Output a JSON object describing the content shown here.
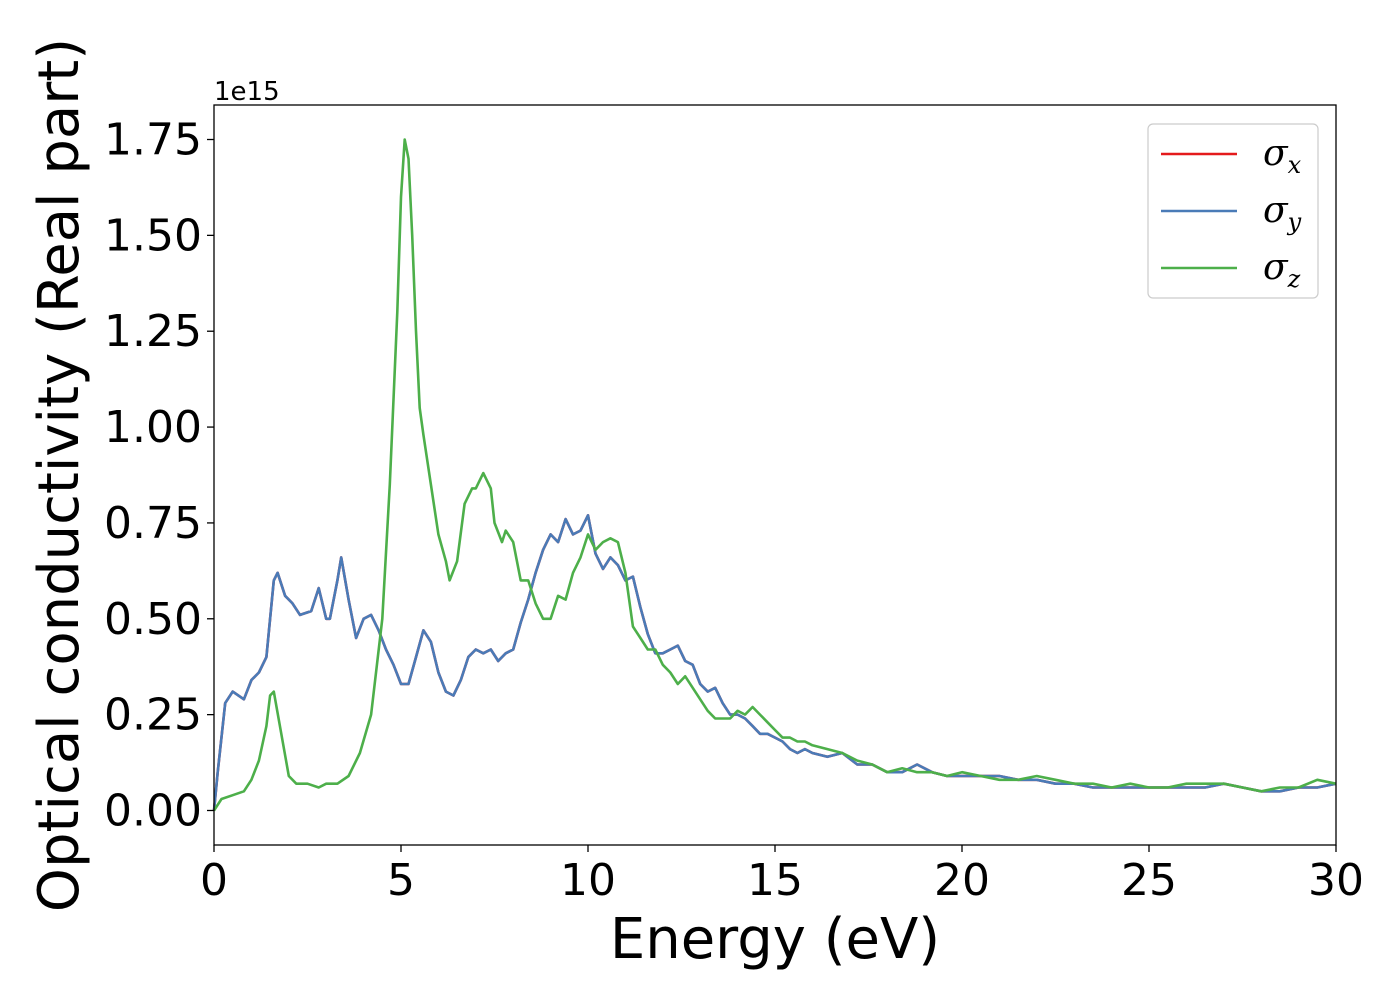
{
  "chart_data": {
    "type": "line",
    "xlabel": "Energy (eV)",
    "ylabel": "Optical conductivity (Real part)",
    "y_offset_label": "1e15",
    "xlim": [
      0,
      30
    ],
    "ylim": [
      -0.09,
      1.84
    ],
    "xticks": [
      0,
      5,
      10,
      15,
      20,
      25,
      30
    ],
    "xtick_labels": [
      "0",
      "5",
      "10",
      "15",
      "20",
      "25",
      "30"
    ],
    "yticks": [
      0.0,
      0.25,
      0.5,
      0.75,
      1.0,
      1.25,
      1.5,
      1.75
    ],
    "ytick_labels": [
      "0.00",
      "0.25",
      "0.50",
      "0.75",
      "1.00",
      "1.25",
      "1.50",
      "1.75"
    ],
    "grid": false,
    "legend_position": "top-right",
    "series": [
      {
        "name": "σx",
        "symbol": "σ",
        "subscript": "x",
        "color": "#e41a1c",
        "x": [
          0,
          0.1,
          0.3,
          0.5,
          0.8,
          1.0,
          1.2,
          1.4,
          1.6,
          1.7,
          1.9,
          2.1,
          2.3,
          2.6,
          2.8,
          3.0,
          3.1,
          3.3,
          3.4,
          3.6,
          3.8,
          4.0,
          4.2,
          4.4,
          4.6,
          4.8,
          5.0,
          5.2,
          5.4,
          5.6,
          5.8,
          6.0,
          6.2,
          6.4,
          6.6,
          6.8,
          7.0,
          7.2,
          7.4,
          7.6,
          7.8,
          8.0,
          8.2,
          8.4,
          8.6,
          8.8,
          9.0,
          9.2,
          9.4,
          9.6,
          9.8,
          10.0,
          10.2,
          10.4,
          10.6,
          10.8,
          11.0,
          11.2,
          11.4,
          11.6,
          11.8,
          12.0,
          12.2,
          12.4,
          12.6,
          12.8,
          13.0,
          13.2,
          13.4,
          13.6,
          13.8,
          14.0,
          14.2,
          14.4,
          14.6,
          14.8,
          15.0,
          15.2,
          15.4,
          15.6,
          15.8,
          16.0,
          16.4,
          16.8,
          17.2,
          17.6,
          18.0,
          18.4,
          18.8,
          19.2,
          19.6,
          20.0,
          20.5,
          21.0,
          21.5,
          22.0,
          22.5,
          23.0,
          23.5,
          24.0,
          24.5,
          25.0,
          25.5,
          26.0,
          26.5,
          27.0,
          27.5,
          28.0,
          28.5,
          29.0,
          29.5,
          30.0
        ],
        "y": [
          0.0,
          0.1,
          0.28,
          0.31,
          0.29,
          0.34,
          0.36,
          0.4,
          0.6,
          0.62,
          0.56,
          0.54,
          0.51,
          0.52,
          0.58,
          0.5,
          0.5,
          0.6,
          0.66,
          0.55,
          0.45,
          0.5,
          0.51,
          0.47,
          0.42,
          0.38,
          0.33,
          0.33,
          0.4,
          0.47,
          0.44,
          0.36,
          0.31,
          0.3,
          0.34,
          0.4,
          0.42,
          0.41,
          0.42,
          0.39,
          0.41,
          0.42,
          0.49,
          0.55,
          0.62,
          0.68,
          0.72,
          0.7,
          0.76,
          0.72,
          0.73,
          0.77,
          0.67,
          0.63,
          0.66,
          0.64,
          0.6,
          0.61,
          0.53,
          0.46,
          0.41,
          0.41,
          0.42,
          0.43,
          0.39,
          0.38,
          0.33,
          0.31,
          0.32,
          0.28,
          0.25,
          0.25,
          0.24,
          0.22,
          0.2,
          0.2,
          0.19,
          0.18,
          0.16,
          0.15,
          0.16,
          0.15,
          0.14,
          0.15,
          0.12,
          0.12,
          0.1,
          0.1,
          0.12,
          0.1,
          0.09,
          0.09,
          0.09,
          0.09,
          0.08,
          0.08,
          0.07,
          0.07,
          0.06,
          0.06,
          0.06,
          0.06,
          0.06,
          0.06,
          0.06,
          0.07,
          0.06,
          0.05,
          0.05,
          0.06,
          0.06,
          0.07
        ]
      },
      {
        "name": "σy",
        "symbol": "σ",
        "subscript": "y",
        "color": "#4a7bb7",
        "x": [
          0,
          0.1,
          0.3,
          0.5,
          0.8,
          1.0,
          1.2,
          1.4,
          1.6,
          1.7,
          1.9,
          2.1,
          2.3,
          2.6,
          2.8,
          3.0,
          3.1,
          3.3,
          3.4,
          3.6,
          3.8,
          4.0,
          4.2,
          4.4,
          4.6,
          4.8,
          5.0,
          5.2,
          5.4,
          5.6,
          5.8,
          6.0,
          6.2,
          6.4,
          6.6,
          6.8,
          7.0,
          7.2,
          7.4,
          7.6,
          7.8,
          8.0,
          8.2,
          8.4,
          8.6,
          8.8,
          9.0,
          9.2,
          9.4,
          9.6,
          9.8,
          10.0,
          10.2,
          10.4,
          10.6,
          10.8,
          11.0,
          11.2,
          11.4,
          11.6,
          11.8,
          12.0,
          12.2,
          12.4,
          12.6,
          12.8,
          13.0,
          13.2,
          13.4,
          13.6,
          13.8,
          14.0,
          14.2,
          14.4,
          14.6,
          14.8,
          15.0,
          15.2,
          15.4,
          15.6,
          15.8,
          16.0,
          16.4,
          16.8,
          17.2,
          17.6,
          18.0,
          18.4,
          18.8,
          19.2,
          19.6,
          20.0,
          20.5,
          21.0,
          21.5,
          22.0,
          22.5,
          23.0,
          23.5,
          24.0,
          24.5,
          25.0,
          25.5,
          26.0,
          26.5,
          27.0,
          27.5,
          28.0,
          28.5,
          29.0,
          29.5,
          30.0
        ],
        "y": [
          0.0,
          0.1,
          0.28,
          0.31,
          0.29,
          0.34,
          0.36,
          0.4,
          0.6,
          0.62,
          0.56,
          0.54,
          0.51,
          0.52,
          0.58,
          0.5,
          0.5,
          0.6,
          0.66,
          0.55,
          0.45,
          0.5,
          0.51,
          0.47,
          0.42,
          0.38,
          0.33,
          0.33,
          0.4,
          0.47,
          0.44,
          0.36,
          0.31,
          0.3,
          0.34,
          0.4,
          0.42,
          0.41,
          0.42,
          0.39,
          0.41,
          0.42,
          0.49,
          0.55,
          0.62,
          0.68,
          0.72,
          0.7,
          0.76,
          0.72,
          0.73,
          0.77,
          0.67,
          0.63,
          0.66,
          0.64,
          0.6,
          0.61,
          0.53,
          0.46,
          0.41,
          0.41,
          0.42,
          0.43,
          0.39,
          0.38,
          0.33,
          0.31,
          0.32,
          0.28,
          0.25,
          0.25,
          0.24,
          0.22,
          0.2,
          0.2,
          0.19,
          0.18,
          0.16,
          0.15,
          0.16,
          0.15,
          0.14,
          0.15,
          0.12,
          0.12,
          0.1,
          0.1,
          0.12,
          0.1,
          0.09,
          0.09,
          0.09,
          0.09,
          0.08,
          0.08,
          0.07,
          0.07,
          0.06,
          0.06,
          0.06,
          0.06,
          0.06,
          0.06,
          0.06,
          0.07,
          0.06,
          0.05,
          0.05,
          0.06,
          0.06,
          0.07
        ]
      },
      {
        "name": "σz",
        "symbol": "σ",
        "subscript": "z",
        "color": "#4daf4a",
        "x": [
          0,
          0.2,
          0.5,
          0.8,
          1.0,
          1.2,
          1.4,
          1.5,
          1.6,
          1.8,
          2.0,
          2.2,
          2.5,
          2.8,
          3.0,
          3.3,
          3.6,
          3.9,
          4.2,
          4.5,
          4.7,
          4.9,
          5.0,
          5.1,
          5.2,
          5.3,
          5.4,
          5.5,
          5.6,
          5.8,
          6.0,
          6.2,
          6.3,
          6.5,
          6.7,
          6.9,
          7.0,
          7.1,
          7.2,
          7.4,
          7.5,
          7.7,
          7.8,
          8.0,
          8.2,
          8.4,
          8.6,
          8.8,
          9.0,
          9.2,
          9.4,
          9.6,
          9.8,
          10.0,
          10.2,
          10.4,
          10.6,
          10.8,
          11.0,
          11.2,
          11.4,
          11.6,
          11.8,
          12.0,
          12.2,
          12.4,
          12.6,
          12.8,
          13.0,
          13.2,
          13.4,
          13.6,
          13.8,
          14.0,
          14.2,
          14.4,
          14.6,
          14.8,
          15.0,
          15.2,
          15.4,
          15.6,
          15.8,
          16.0,
          16.4,
          16.8,
          17.2,
          17.6,
          18.0,
          18.4,
          18.8,
          19.2,
          19.6,
          20.0,
          20.5,
          21.0,
          21.5,
          22.0,
          22.5,
          23.0,
          23.5,
          24.0,
          24.5,
          25.0,
          25.5,
          26.0,
          26.5,
          27.0,
          27.5,
          28.0,
          28.5,
          29.0,
          29.5,
          30.0
        ],
        "y": [
          0.0,
          0.03,
          0.04,
          0.05,
          0.08,
          0.13,
          0.22,
          0.3,
          0.31,
          0.2,
          0.09,
          0.07,
          0.07,
          0.06,
          0.07,
          0.07,
          0.09,
          0.15,
          0.25,
          0.5,
          0.85,
          1.3,
          1.6,
          1.75,
          1.7,
          1.5,
          1.25,
          1.05,
          0.98,
          0.85,
          0.72,
          0.65,
          0.6,
          0.65,
          0.8,
          0.84,
          0.84,
          0.86,
          0.88,
          0.84,
          0.75,
          0.7,
          0.73,
          0.7,
          0.6,
          0.6,
          0.54,
          0.5,
          0.5,
          0.56,
          0.55,
          0.62,
          0.66,
          0.72,
          0.68,
          0.7,
          0.71,
          0.7,
          0.62,
          0.48,
          0.45,
          0.42,
          0.42,
          0.38,
          0.36,
          0.33,
          0.35,
          0.32,
          0.29,
          0.26,
          0.24,
          0.24,
          0.24,
          0.26,
          0.25,
          0.27,
          0.25,
          0.23,
          0.21,
          0.19,
          0.19,
          0.18,
          0.18,
          0.17,
          0.16,
          0.15,
          0.13,
          0.12,
          0.1,
          0.11,
          0.1,
          0.1,
          0.09,
          0.1,
          0.09,
          0.08,
          0.08,
          0.09,
          0.08,
          0.07,
          0.07,
          0.06,
          0.07,
          0.06,
          0.06,
          0.07,
          0.07,
          0.07,
          0.06,
          0.05,
          0.06,
          0.06,
          0.08,
          0.07
        ]
      }
    ]
  }
}
